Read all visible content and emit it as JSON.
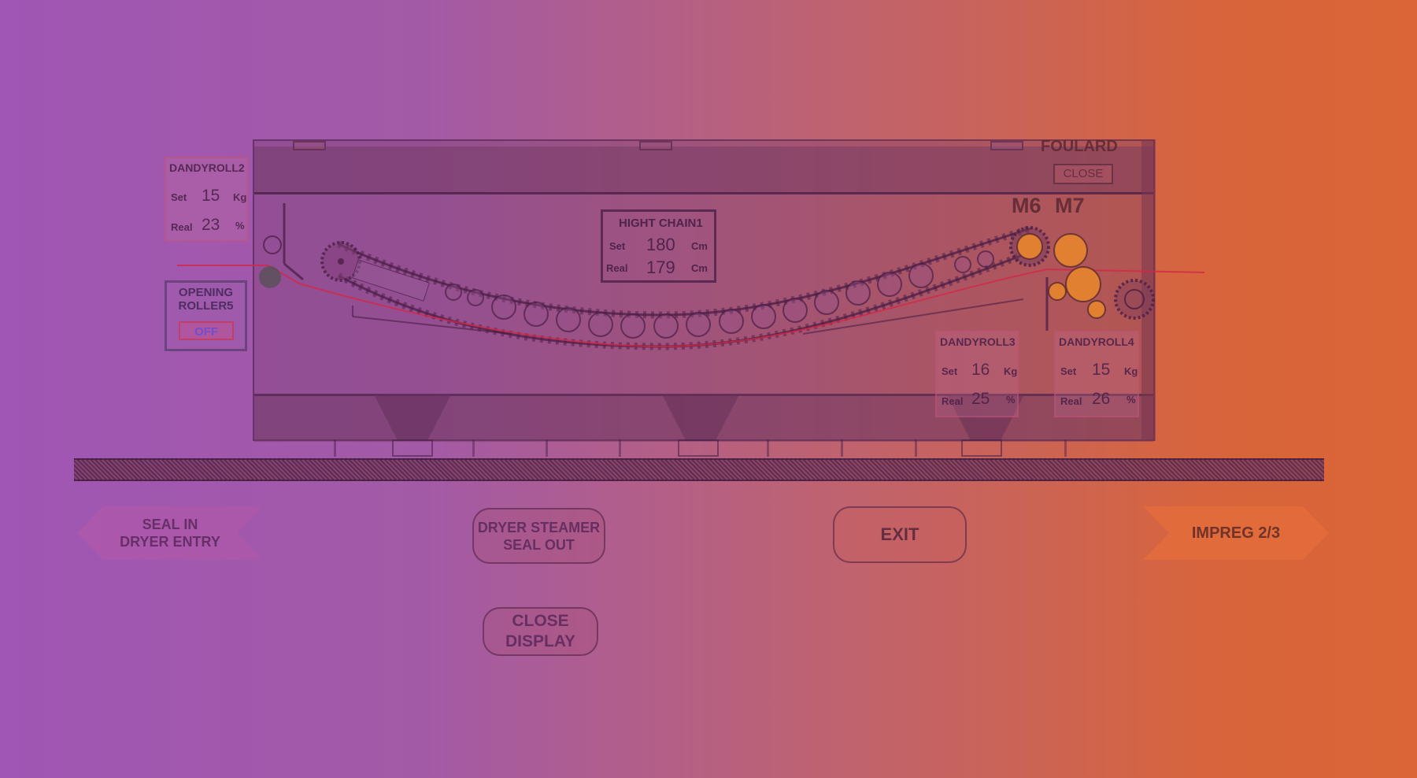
{
  "dandyroll2": {
    "title": "DANDYROLL2",
    "set_label": "Set",
    "set_value": "15",
    "set_unit": "Kg",
    "real_label": "Real",
    "real_value": "23",
    "real_unit": "%"
  },
  "dandyroll3": {
    "title": "DANDYROLL3",
    "set_label": "Set",
    "set_value": "16",
    "set_unit": "Kg",
    "real_label": "Real",
    "real_value": "25",
    "real_unit": "%"
  },
  "dandyroll4": {
    "title": "DANDYROLL4",
    "set_label": "Set",
    "set_value": "15",
    "set_unit": "Kg",
    "real_label": "Real",
    "real_value": "26",
    "real_unit": "%"
  },
  "hight_chain1": {
    "title": "HIGHT CHAIN1",
    "set_label": "Set",
    "set_value": "180",
    "set_unit": "Cm",
    "real_label": "Real",
    "real_value": "179",
    "real_unit": "Cm"
  },
  "opening_roller5": {
    "line1": "OPENING",
    "line2": "ROLLER5",
    "button": "OFF"
  },
  "foulard": {
    "title": "FOULARD",
    "close_label": "CLOSE",
    "m6": "M6",
    "m7": "M7"
  },
  "nav": {
    "back_line1": "SEAL IN",
    "back_line2": "DRYER ENTRY",
    "dryer_line1": "DRYER STEAMER",
    "dryer_line2": "SEAL OUT",
    "exit": "EXIT",
    "next": "IMPREG 2/3",
    "close_display_line1": "CLOSE",
    "close_display_line2": "DISPLAY"
  },
  "colors": {
    "accent_orange": "#e07a2f",
    "panel_border": "#c0406a",
    "off_text": "#6f4fcf"
  }
}
